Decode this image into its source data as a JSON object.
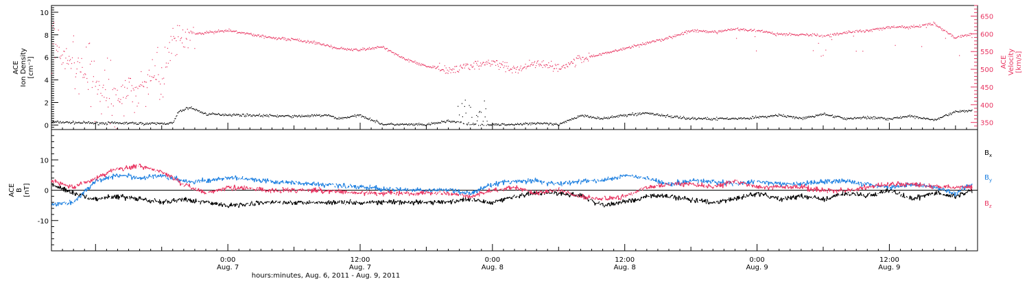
{
  "colors": {
    "black": "#000000",
    "pink": "#e8325f",
    "blue": "#1a7ee0"
  },
  "chart_data": [
    {
      "panel": "top",
      "type": "scatter",
      "ylabel_left_lines": [
        "ACE",
        "Ion Density",
        "[cm⁻³]"
      ],
      "ylabel_right_lines": [
        "ACE",
        "Velocity",
        "[km/s]"
      ],
      "left_ylim": [
        -0.4,
        10.6
      ],
      "left_ticks": [
        0,
        2,
        4,
        6,
        8,
        10
      ],
      "right_ylim": [
        330,
        680
      ],
      "right_ticks": [
        350,
        400,
        450,
        500,
        550,
        600,
        650
      ],
      "xlim_hours": [
        -16,
        68
      ],
      "series": [
        {
          "color": "#000000",
          "axis": "left",
          "x": [
            -16,
            -12,
            -9,
            -7,
            -5,
            -4.5,
            -3.5,
            -2,
            2,
            6,
            9,
            10,
            12,
            14,
            18,
            20,
            22,
            23,
            24,
            26,
            28,
            30,
            32,
            34,
            36,
            38,
            40,
            42,
            44,
            46,
            48,
            50,
            52,
            54,
            56,
            58,
            60,
            62,
            64,
            66,
            67.5
          ],
          "y": [
            0.3,
            0.2,
            0.2,
            0.15,
            0.2,
            1.2,
            1.6,
            1.0,
            0.9,
            0.8,
            0.9,
            0.6,
            0.9,
            0.1,
            0.05,
            0.4,
            0.1,
            0.05,
            0.05,
            0.1,
            0.2,
            0.05,
            0.9,
            0.6,
            0.9,
            1.1,
            0.8,
            0.6,
            0.6,
            0.6,
            0.7,
            0.9,
            0.6,
            1.0,
            0.6,
            0.7,
            0.6,
            0.8,
            0.5,
            1.2,
            1.3
          ]
        },
        {
          "color": "#e8325f",
          "axis": "right",
          "x": [
            -16,
            -14,
            -12,
            -10,
            -8,
            -6,
            -5,
            -3,
            0,
            2,
            4,
            6,
            8,
            10,
            12,
            14,
            16,
            18,
            20,
            22,
            24,
            26,
            28,
            30,
            32,
            34,
            36,
            38,
            40,
            42,
            44,
            46,
            48,
            50,
            52,
            54,
            56,
            58,
            60,
            62,
            64,
            66,
            67.5
          ],
          "y": [
            560,
            520,
            450,
            420,
            460,
            470,
            600,
            600,
            610,
            600,
            590,
            585,
            575,
            560,
            555,
            565,
            530,
            510,
            500,
            510,
            520,
            500,
            520,
            505,
            530,
            545,
            560,
            575,
            590,
            610,
            605,
            615,
            610,
            600,
            600,
            595,
            605,
            610,
            620,
            620,
            630,
            590,
            600
          ]
        }
      ]
    },
    {
      "panel": "bottom",
      "type": "line",
      "ylabel_lines": [
        "ACE",
        "B",
        "[nT]"
      ],
      "ylim": [
        -20,
        20
      ],
      "ticks": [
        -10,
        0,
        10
      ],
      "xlim_hours": [
        -16,
        68
      ],
      "x_ticks": [
        {
          "hour": 0,
          "time": "0:00",
          "date": "Aug. 7"
        },
        {
          "hour": 12,
          "time": "12:00",
          "date": "Aug. 7"
        },
        {
          "hour": 24,
          "time": "0:00",
          "date": "Aug. 8"
        },
        {
          "hour": 36,
          "time": "12:00",
          "date": "Aug. 8"
        },
        {
          "hour": 48,
          "time": "0:00",
          "date": "Aug. 9"
        },
        {
          "hour": 60,
          "time": "12:00",
          "date": "Aug. 9"
        }
      ],
      "xlabel": "hours:minutes, Aug.  6, 2011 - Aug.  9, 2011",
      "series": [
        {
          "name": "Bx",
          "base": "B",
          "sub": "x",
          "color": "#000000",
          "x": [
            -16,
            -14,
            -12,
            -10,
            -8,
            -6,
            -4,
            -2,
            0,
            4,
            8,
            12,
            16,
            20,
            22,
            24,
            26,
            28,
            30,
            32,
            34,
            36,
            38,
            40,
            42,
            44,
            46,
            48,
            50,
            52,
            54,
            56,
            58,
            60,
            62,
            64,
            66,
            67.5
          ],
          "y": [
            2,
            -1,
            -3,
            -2,
            -3,
            -4,
            -3,
            -4,
            -5,
            -4,
            -4,
            -4,
            -4,
            -4,
            -3,
            -4,
            -2,
            -1,
            -1,
            -2,
            -5,
            -4,
            -2,
            -2,
            -3,
            -4,
            -3,
            -1,
            -3,
            -2,
            -3,
            -1,
            -2,
            0,
            -3,
            -1,
            -2,
            0
          ]
        },
        {
          "name": "By",
          "base": "B",
          "sub": "y",
          "color": "#1a7ee0",
          "x": [
            -16,
            -14,
            -12,
            -10,
            -8,
            -6,
            -4,
            -2,
            0,
            4,
            8,
            12,
            16,
            20,
            22,
            24,
            26,
            28,
            30,
            32,
            34,
            36,
            38,
            40,
            42,
            44,
            46,
            48,
            50,
            52,
            54,
            56,
            58,
            60,
            62,
            64,
            66,
            67.5
          ],
          "y": [
            -5,
            -4,
            3,
            5,
            4,
            5,
            3,
            3,
            4,
            3,
            2,
            1,
            0,
            0,
            -1,
            2,
            3,
            3,
            2,
            3,
            3,
            5,
            4,
            2,
            3,
            3,
            2,
            3,
            2,
            2,
            3,
            3,
            2,
            1,
            2,
            1,
            -1,
            2
          ]
        },
        {
          "name": "Bz",
          "base": "B",
          "sub": "z",
          "color": "#e8325f",
          "x": [
            -16,
            -14,
            -12,
            -10,
            -8,
            -6,
            -4,
            -2,
            0,
            4,
            8,
            12,
            16,
            20,
            22,
            24,
            26,
            28,
            30,
            32,
            34,
            36,
            38,
            40,
            42,
            44,
            46,
            48,
            50,
            52,
            54,
            56,
            58,
            60,
            62,
            64,
            66,
            67.5
          ],
          "y": [
            3,
            1,
            4,
            7,
            8,
            6,
            2,
            -1,
            1,
            0,
            0,
            -1,
            -1,
            -1,
            -2,
            0,
            1,
            -1,
            0,
            -2,
            -3,
            -2,
            1,
            2,
            2,
            1,
            3,
            1,
            1,
            1,
            0,
            0,
            1,
            2,
            2,
            1,
            1,
            1
          ]
        }
      ]
    }
  ]
}
